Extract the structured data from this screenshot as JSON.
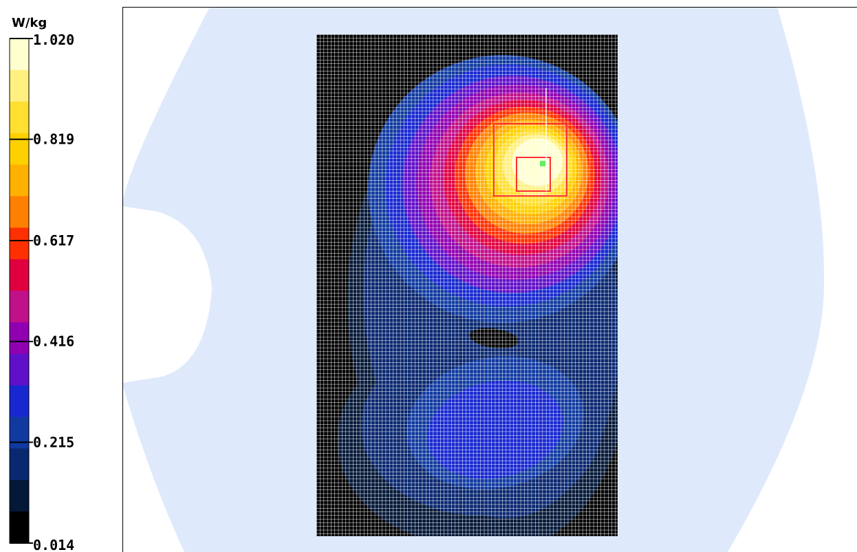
{
  "chart_data": {
    "type": "heatmap",
    "title": "",
    "unit": "W/kg",
    "colorbar": {
      "min": 0.014,
      "max": 1.02,
      "tick_labels": [
        "1.020",
        "0.819",
        "0.617",
        "0.416",
        "0.215",
        "0.014"
      ],
      "tick_values": [
        1.02,
        0.819,
        0.617,
        0.416,
        0.215,
        0.014
      ],
      "band_colors_top_to_bottom": [
        "#ffffd0",
        "#fff080",
        "#ffe030",
        "#ffd000",
        "#ffb000",
        "#ff8000",
        "#ff3000",
        "#e00040",
        "#c0108a",
        "#9000b0",
        "#6010c8",
        "#1828d0",
        "#103aa0",
        "#0a2870",
        "#041838",
        "#000000"
      ]
    },
    "scan_area": {
      "grid": "on",
      "peak_value": 1.02,
      "peak_location": "upper-right of scan area",
      "secondary_lobe": "lower-center of scan area",
      "zoom_cube_color": "#ff3030",
      "peak_marker_color": "#66ee66"
    },
    "colors": {
      "phantom_background": "#deeafc",
      "outer_background": "#ffffff",
      "frame_border": "#000000",
      "grid_lines": "#ffffff"
    }
  }
}
